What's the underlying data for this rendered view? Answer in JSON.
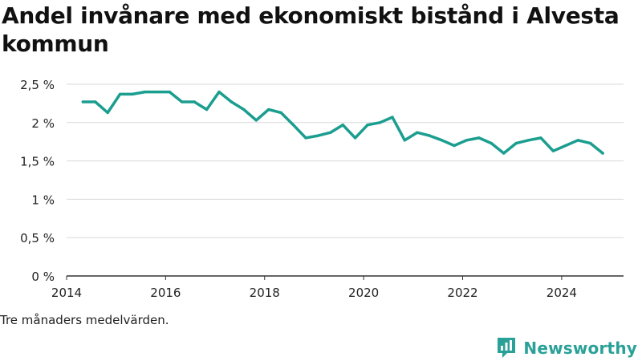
{
  "title": "Andel invånare med ekonomiskt bistånd i Alvesta kommun",
  "note": "Tre månaders medelvärden.",
  "brand": {
    "name": "Newsworthy",
    "icon": "newsworthy-logo-icon",
    "color": "#2aa198"
  },
  "chart_data": {
    "type": "line",
    "title": "Andel invånare med ekonomiskt bistånd i Alvesta kommun",
    "xlabel": "",
    "ylabel": "",
    "xlim": [
      2014,
      2025.25
    ],
    "ylim": [
      0,
      2.5
    ],
    "x_ticks": [
      2014,
      2016,
      2018,
      2020,
      2022,
      2024
    ],
    "y_ticks": [
      {
        "value": 0,
        "label": "0 %"
      },
      {
        "value": 0.5,
        "label": "0,5 %"
      },
      {
        "value": 1,
        "label": "1 %"
      },
      {
        "value": 1.5,
        "label": "1,5 %"
      },
      {
        "value": 2,
        "label": "2 %"
      },
      {
        "value": 2.5,
        "label": "2,5 %"
      }
    ],
    "grid": "horizontal",
    "line_color": "#1b9e8f",
    "series": [
      {
        "x": [
          2014.33,
          2014.58,
          2014.83,
          2015.08,
          2015.33,
          2015.58,
          2015.83,
          2016.08,
          2016.33,
          2016.58,
          2016.83,
          2017.08,
          2017.33,
          2017.58,
          2017.83,
          2018.08,
          2018.33,
          2018.58,
          2018.83,
          2019.08,
          2019.33,
          2019.58,
          2019.83,
          2020.08,
          2020.33,
          2020.58,
          2020.83,
          2021.08,
          2021.33,
          2021.58,
          2021.83,
          2022.08,
          2022.33,
          2022.58,
          2022.83,
          2023.08,
          2023.33,
          2023.58,
          2023.83,
          2024.08,
          2024.33,
          2024.58,
          2024.83
        ],
        "y": [
          2.27,
          2.27,
          2.13,
          2.37,
          2.37,
          2.4,
          2.4,
          2.4,
          2.27,
          2.27,
          2.17,
          2.4,
          2.27,
          2.17,
          2.03,
          2.17,
          2.13,
          1.97,
          1.8,
          1.83,
          1.87,
          1.97,
          1.8,
          1.97,
          2.0,
          2.07,
          1.77,
          1.87,
          1.83,
          1.77,
          1.7,
          1.77,
          1.8,
          1.73,
          1.6,
          1.73,
          1.77,
          1.8,
          1.63,
          1.7,
          1.77,
          1.73,
          1.6
        ]
      }
    ]
  }
}
